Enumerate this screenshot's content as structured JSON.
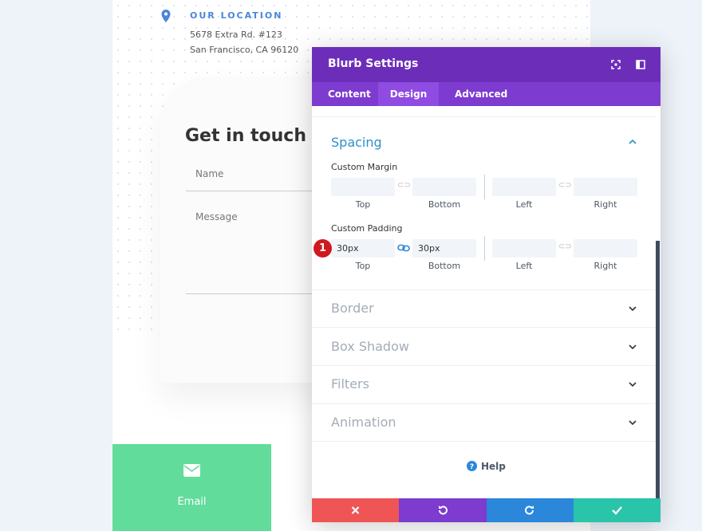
{
  "location": {
    "heading": "OUR LOCATION",
    "line1": "5678 Extra Rd. #123",
    "line2": "San Francisco, CA 96120"
  },
  "contact": {
    "title": "Get in touch",
    "name_placeholder": "Name",
    "message_placeholder": "Message"
  },
  "email_label": "Email",
  "modal": {
    "title": "Blurb Settings",
    "tabs": [
      "Content",
      "Design",
      "Advanced"
    ],
    "spacing": {
      "title": "Spacing",
      "margin": {
        "label": "Custom Margin",
        "sides": [
          "Top",
          "Bottom",
          "Left",
          "Right"
        ]
      },
      "padding": {
        "label": "Custom Padding",
        "values": [
          "30px",
          "30px"
        ],
        "sides": [
          "Top",
          "Bottom",
          "Left",
          "Right"
        ],
        "badge": "1"
      }
    },
    "sections": [
      "Border",
      "Box Shadow",
      "Filters",
      "Animation"
    ],
    "help": "Help"
  }
}
